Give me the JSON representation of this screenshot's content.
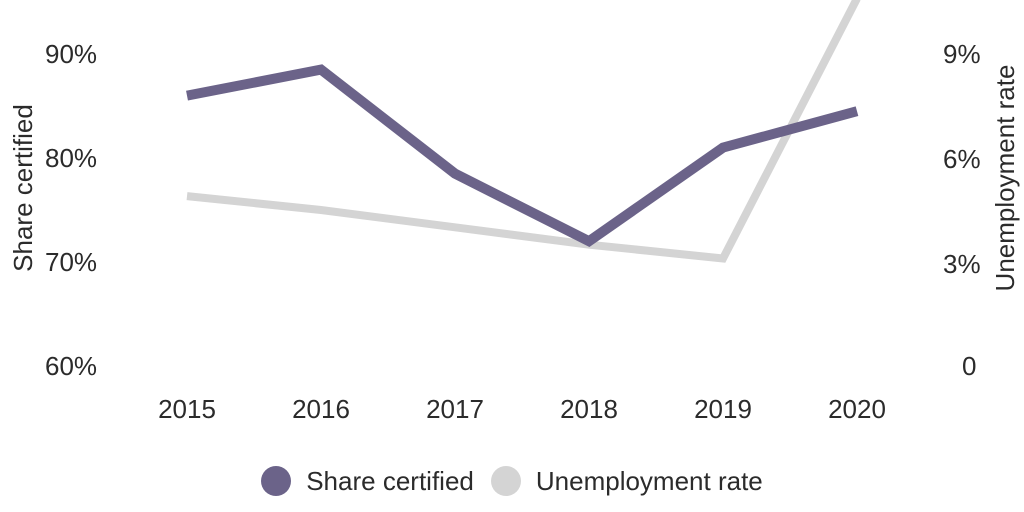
{
  "chart_data": {
    "type": "line",
    "x": [
      2015,
      2016,
      2017,
      2018,
      2019,
      2020
    ],
    "x_ticks": [
      "2015",
      "2016",
      "2017",
      "2018",
      "2019",
      "2020"
    ],
    "series": [
      {
        "name": "Share certified",
        "axis": "left",
        "color": "#6b6389",
        "values": [
          86,
          88.5,
          78.5,
          72,
          81,
          84.5
        ]
      },
      {
        "name": "Unemployment rate",
        "axis": "right",
        "color": "#d4d4d4",
        "values": [
          4.9,
          4.5,
          4.0,
          3.5,
          3.1,
          10.6
        ]
      }
    ],
    "left_axis": {
      "label": "Share certified",
      "ticks": [
        "90%",
        "80%",
        "70%",
        "60%"
      ],
      "tick_values": [
        90,
        80,
        70,
        60
      ],
      "range": [
        60,
        90
      ]
    },
    "right_axis": {
      "label": "Unemployment rate",
      "ticks": [
        "9%",
        "6%",
        "3%",
        "0"
      ],
      "tick_values": [
        9,
        6,
        3,
        0
      ],
      "range": [
        0,
        9
      ]
    },
    "grid": false,
    "axis_lines": false,
    "legend_position": "bottom",
    "legend": [
      {
        "label": "Share certified",
        "color": "#6b6389"
      },
      {
        "label": "Unemployment rate",
        "color": "#d4d4d4"
      }
    ]
  },
  "colors": {
    "background": "#ffffff",
    "text": "#2b2b2b",
    "share_certified": "#6b6389",
    "unemployment": "#d4d4d4"
  }
}
